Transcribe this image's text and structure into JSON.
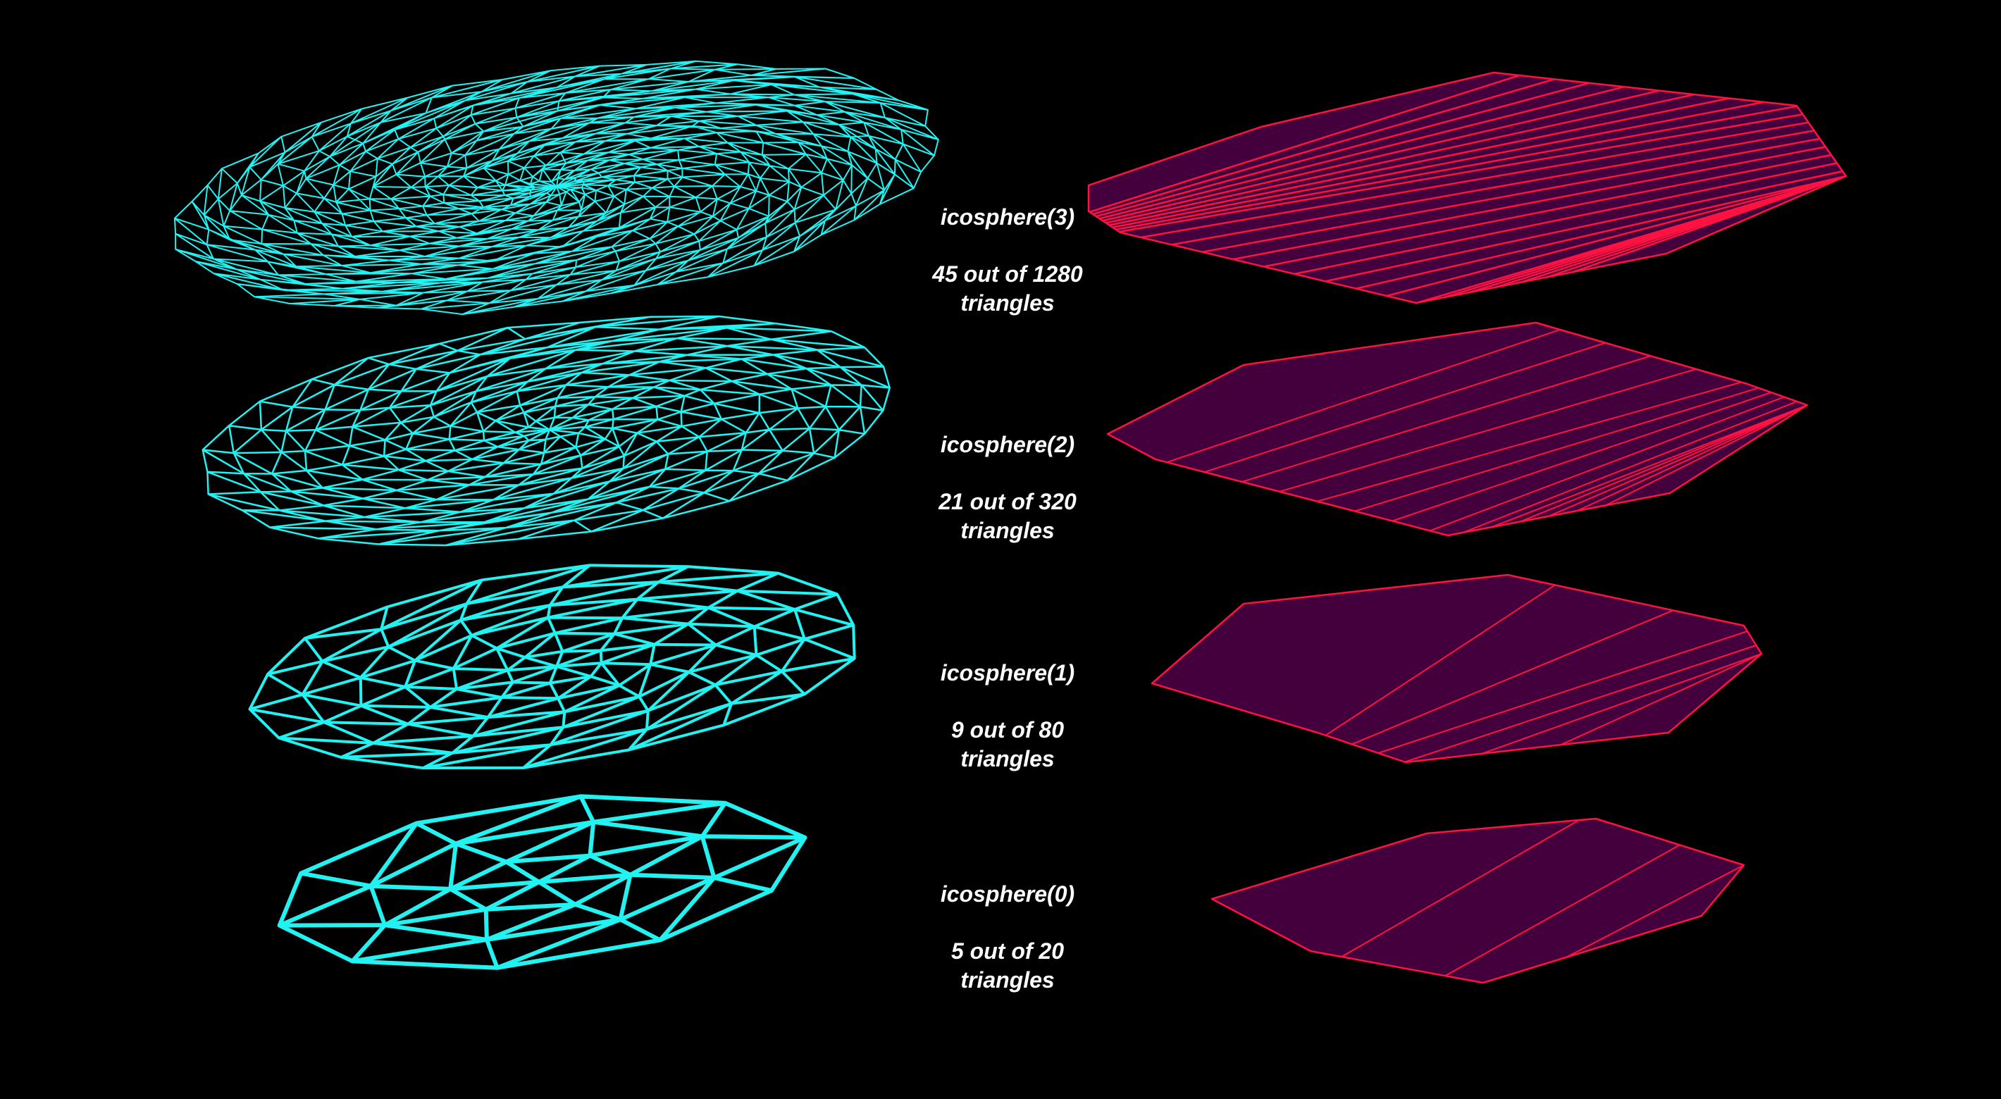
{
  "colors": {
    "background": "#000000",
    "wireframe": "#22f2f2",
    "flat_stroke": "#ff1140",
    "flat_fill": "#44003c",
    "label_text": "#ffffff"
  },
  "rows": [
    {
      "name": "icosphere(3)",
      "count": "45 out of 1280",
      "unit": "triangles"
    },
    {
      "name": "icosphere(2)",
      "count": "21 out of 320",
      "unit": "triangles"
    },
    {
      "name": "icosphere(1)",
      "count": "9 out of 80",
      "unit": "triangles"
    },
    {
      "name": "icosphere(0)",
      "count": "5 out of 20",
      "unit": "triangles"
    }
  ]
}
